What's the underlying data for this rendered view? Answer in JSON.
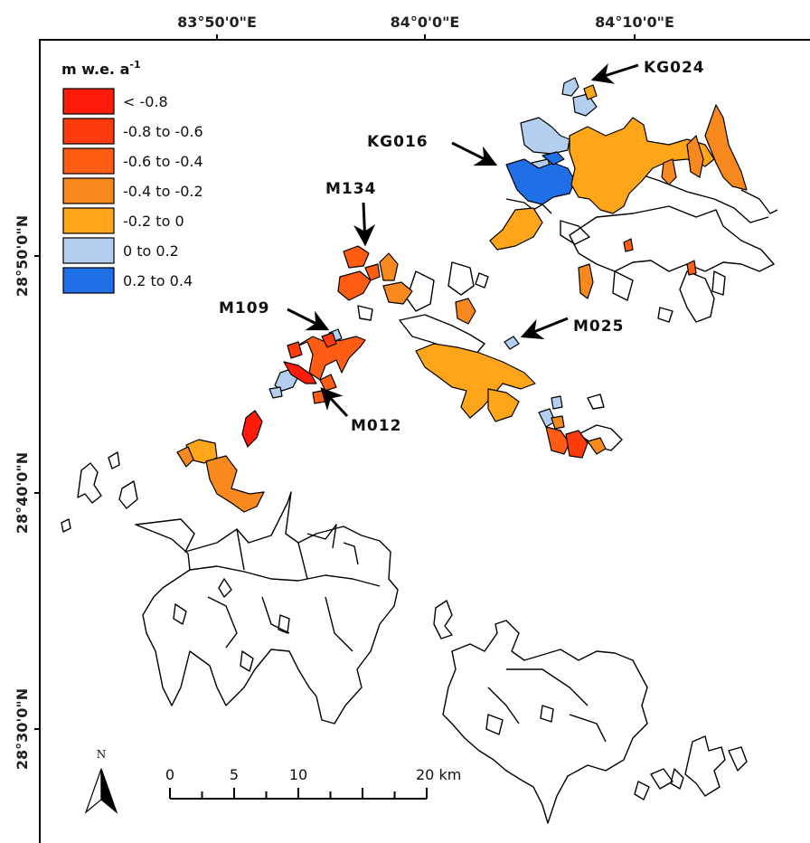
{
  "axes": {
    "top_ticks": [
      "83°50'0\"E",
      "84°0'0\"E",
      "84°10'0\"E"
    ],
    "left_ticks": [
      "28°50'0\"N",
      "28°40'0\"N",
      "28°30'0\"N"
    ]
  },
  "legend": {
    "title_main": "m w.e. a",
    "title_sup": "-1",
    "classes": [
      {
        "label": "< -0.8",
        "color": "#ff1a0a"
      },
      {
        "label": "-0.8 to -0.6",
        "color": "#ff3b0d"
      },
      {
        "label": "-0.6 to -0.4",
        "color": "#ff5c14"
      },
      {
        "label": "-0.4 to -0.2",
        "color": "#f7891f"
      },
      {
        "label": "-0.2 to 0",
        "color": "#ffa51a"
      },
      {
        "label": "0 to 0.2",
        "color": "#b4cef0"
      },
      {
        "label": "0.2 to 0.4",
        "color": "#1f6fe6"
      }
    ]
  },
  "glaciers": [
    {
      "id": "KG024"
    },
    {
      "id": "KG016"
    },
    {
      "id": "M134"
    },
    {
      "id": "M109"
    },
    {
      "id": "M025"
    },
    {
      "id": "M012"
    }
  ],
  "north_arrow": {
    "letter": "N"
  },
  "scale_bar": {
    "labels": [
      "0",
      "5",
      "10",
      "20 km"
    ],
    "ticks_km": [
      0,
      2.5,
      5,
      7.5,
      10,
      12.5,
      15,
      17.5,
      20
    ]
  }
}
